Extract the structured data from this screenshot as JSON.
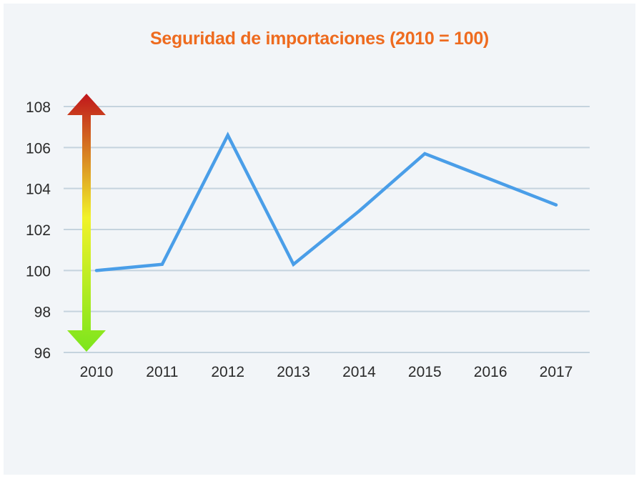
{
  "chart_data": {
    "type": "line",
    "title": "Seguridad de importaciones (2010 = 100)",
    "xlabel": "",
    "ylabel": "",
    "categories": [
      "2010",
      "2011",
      "2012",
      "2013",
      "2014",
      "2015",
      "2016",
      "2017"
    ],
    "series": [
      {
        "values": [
          100.0,
          100.3,
          106.6,
          100.3,
          102.9,
          105.7,
          104.45,
          103.2
        ]
      }
    ],
    "ylim": [
      96,
      108
    ],
    "yticks": [
      96,
      98,
      100,
      102,
      104,
      106,
      108
    ],
    "grid": true,
    "legend": "none",
    "colors": {
      "line": "#4a9ee8",
      "grid": "#c5d3de",
      "title": "#ee6b1f",
      "background": "#f2f5f8",
      "arrow_top": "#c0161b",
      "arrow_middle": "#f1f22a",
      "arrow_bottom": "#7ce51c"
    },
    "annotation": "double-headed-gradient-arrow"
  }
}
